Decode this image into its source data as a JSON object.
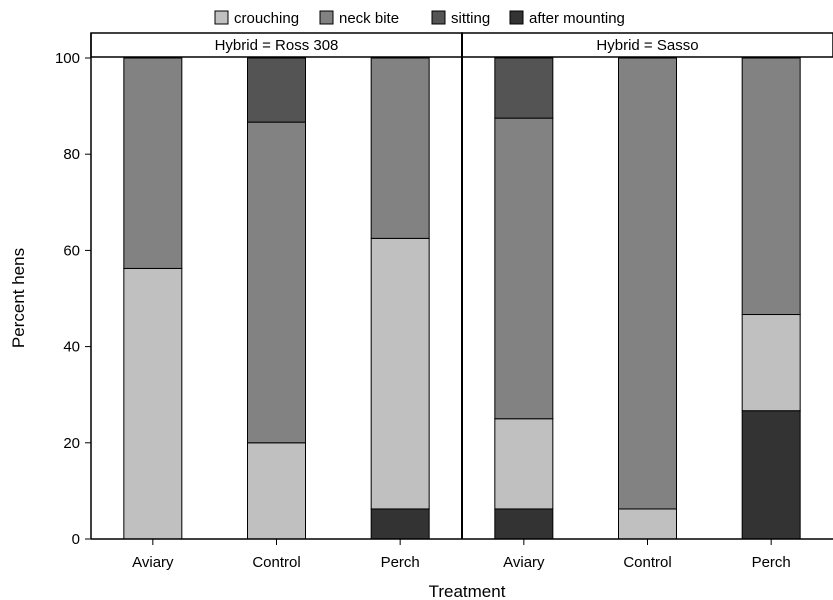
{
  "chart_data": {
    "type": "bar",
    "stacked": true,
    "xlabel": "Treatment",
    "ylabel": "Percent hens",
    "ylim": [
      0,
      100
    ],
    "yticks": [
      0,
      20,
      40,
      60,
      80,
      100
    ],
    "legend": {
      "placement": "top",
      "entries": [
        {
          "name": "crouching",
          "color": "#c0c0c0"
        },
        {
          "name": "neck bite",
          "color": "#828282"
        },
        {
          "name": "sitting",
          "color": "#545454"
        },
        {
          "name": "after mounting",
          "color": "#333333"
        }
      ]
    },
    "panels": [
      {
        "title": "Hybrid = Ross 308",
        "categories": [
          "Aviary",
          "Control",
          "Perch"
        ],
        "series": [
          {
            "name": "after mounting",
            "values": [
              0,
              0,
              6.25
            ]
          },
          {
            "name": "crouching",
            "values": [
              56.25,
              20,
              56.25
            ]
          },
          {
            "name": "neck bite",
            "values": [
              43.75,
              66.67,
              37.5
            ]
          },
          {
            "name": "sitting",
            "values": [
              0,
              13.33,
              0
            ]
          }
        ]
      },
      {
        "title": "Hybrid = Sasso",
        "categories": [
          "Aviary",
          "Control",
          "Perch"
        ],
        "series": [
          {
            "name": "after mounting",
            "values": [
              6.25,
              0,
              26.67
            ]
          },
          {
            "name": "crouching",
            "values": [
              18.75,
              6.25,
              20
            ]
          },
          {
            "name": "neck bite",
            "values": [
              62.5,
              93.75,
              53.33
            ]
          },
          {
            "name": "sitting",
            "values": [
              12.5,
              0,
              0
            ]
          }
        ]
      }
    ],
    "grid": false
  }
}
